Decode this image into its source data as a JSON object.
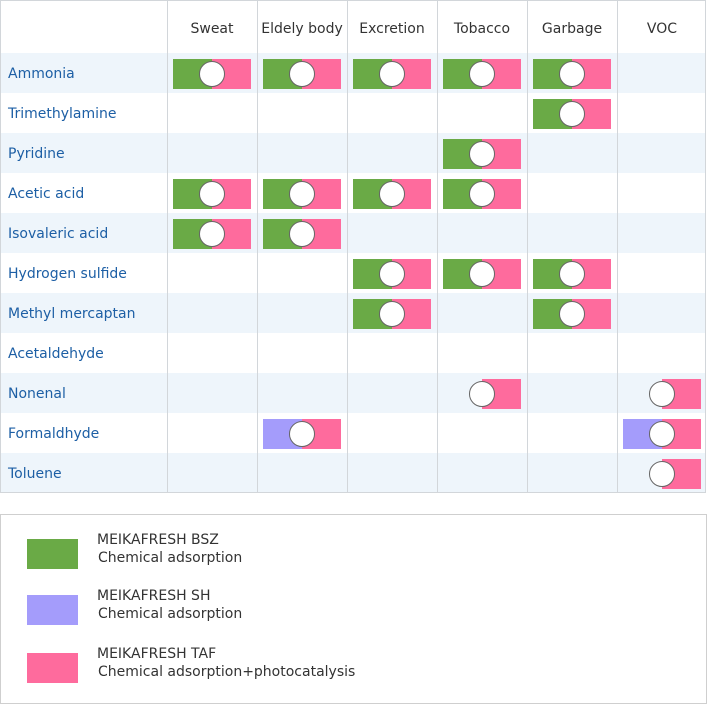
{
  "columns": [
    "Sweat",
    "Eldely body",
    "Excretion",
    "Tobacco",
    "Garbage",
    "VOC"
  ],
  "rows": [
    {
      "label": "Ammonia",
      "cells": [
        "BSZ",
        "BSZ",
        "BSZ",
        "BSZ",
        "BSZ",
        ""
      ]
    },
    {
      "label": "Trimethylamine",
      "cells": [
        "",
        "",
        "",
        "",
        "BSZ",
        ""
      ]
    },
    {
      "label": "Pyridine",
      "cells": [
        "",
        "",
        "",
        "BSZ",
        "",
        ""
      ]
    },
    {
      "label": "Acetic acid",
      "cells": [
        "BSZ",
        "BSZ",
        "BSZ",
        "BSZ",
        "",
        ""
      ]
    },
    {
      "label": "Isovaleric acid",
      "cells": [
        "BSZ",
        "BSZ",
        "",
        "",
        "",
        ""
      ]
    },
    {
      "label": "Hydrogen sulfide",
      "cells": [
        "",
        "",
        "BSZ",
        "BSZ",
        "BSZ",
        ""
      ]
    },
    {
      "label": "Methyl mercaptan",
      "cells": [
        "",
        "",
        "BSZ",
        "",
        "BSZ",
        ""
      ]
    },
    {
      "label": "Acetaldehyde",
      "cells": [
        "",
        "",
        "",
        "",
        "",
        ""
      ]
    },
    {
      "label": "Nonenal",
      "cells": [
        "",
        "",
        "",
        "TAF",
        "",
        "TAF"
      ]
    },
    {
      "label": "Formaldhyde",
      "cells": [
        "",
        "SH",
        "",
        "",
        "",
        "SH"
      ]
    },
    {
      "label": "Toluene",
      "cells": [
        "",
        "",
        "",
        "",
        "",
        "TAF"
      ]
    }
  ],
  "legend": [
    {
      "name": "MEIKAFRESH BSZ",
      "desc": "Chemical adsorption",
      "color": "#6aaa46"
    },
    {
      "name": "MEIKAFRESH SH",
      "desc": "Chemical adsorption",
      "color": "#a49cfb"
    },
    {
      "name": "MEIKAFRESH TAF",
      "desc": "Chemical adsorption+photocatalysis",
      "color": "#fe6b9d"
    }
  ],
  "colors": {
    "BSZ": "#6aaa46",
    "SH": "#a49cfb",
    "TAF": "#fe6b9d",
    "row_alt": "#eef5fb",
    "row_label": "#1d5fa5",
    "header_text": "#333333",
    "grid_line": "#d2d6da"
  }
}
